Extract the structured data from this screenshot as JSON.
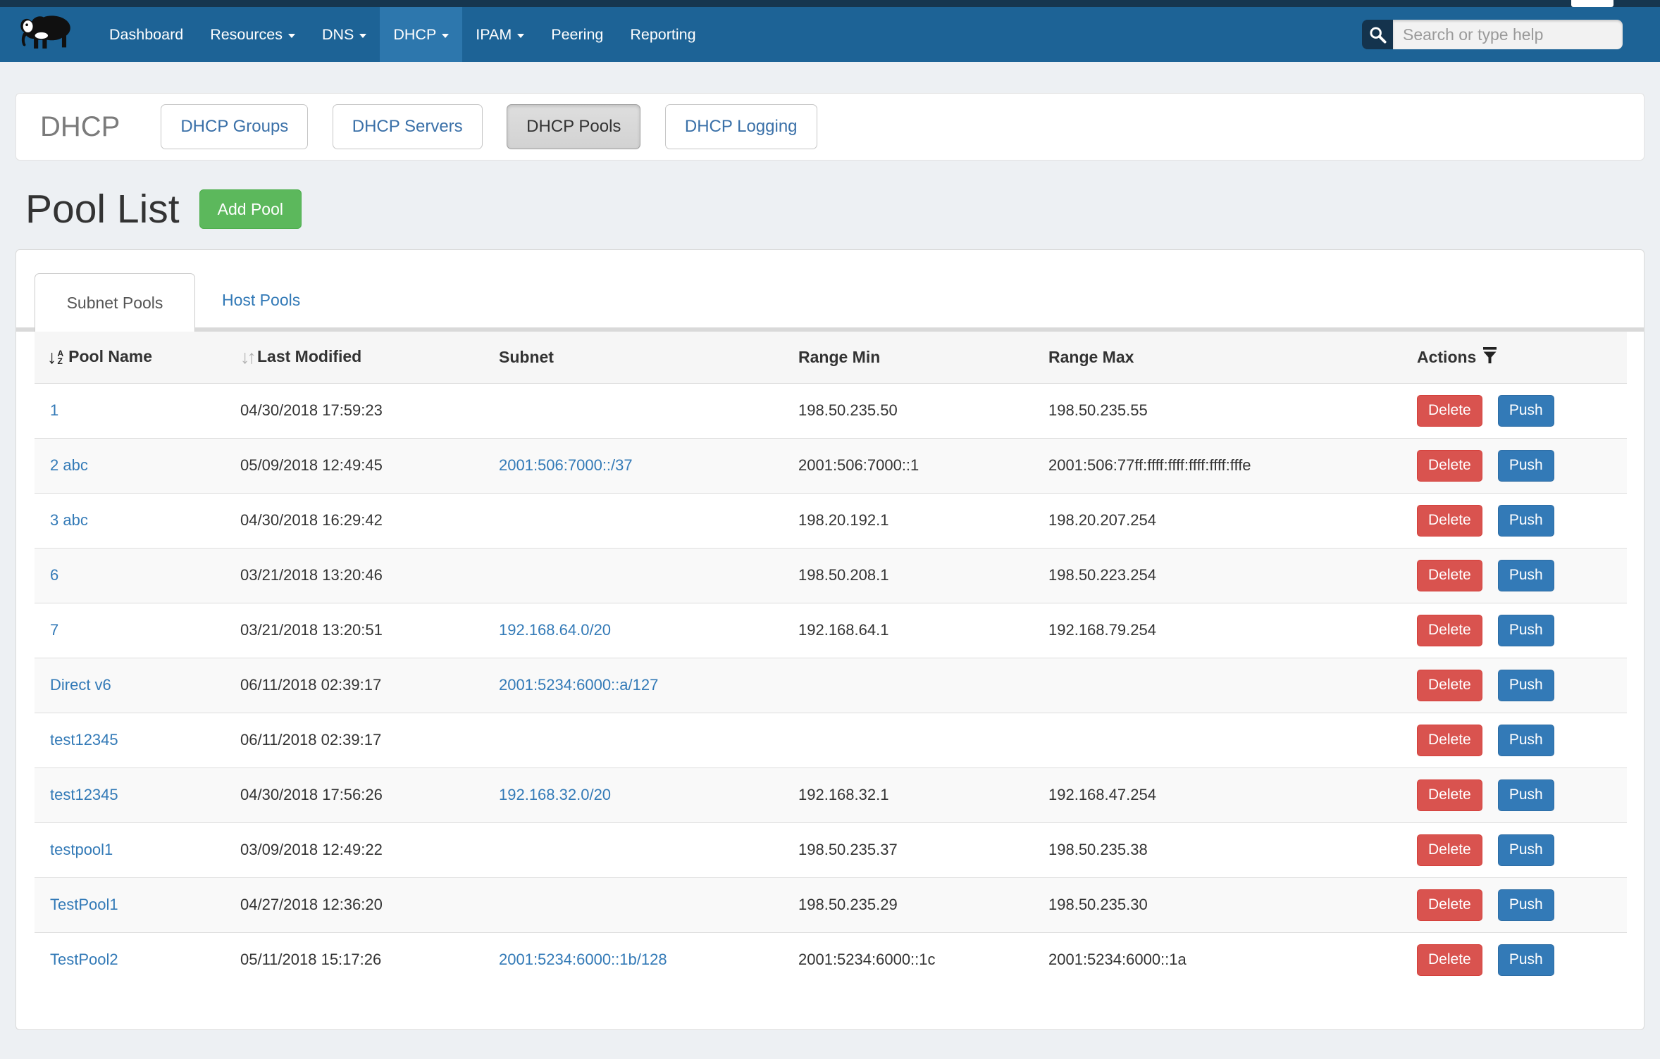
{
  "navbar": {
    "items": [
      {
        "label": "Dashboard",
        "caret": false,
        "active": false
      },
      {
        "label": "Resources",
        "caret": true,
        "active": false
      },
      {
        "label": "DNS",
        "caret": true,
        "active": false
      },
      {
        "label": "DHCP",
        "caret": true,
        "active": true
      },
      {
        "label": "IPAM",
        "caret": true,
        "active": false
      },
      {
        "label": "Peering",
        "caret": false,
        "active": false
      },
      {
        "label": "Reporting",
        "caret": false,
        "active": false
      }
    ],
    "search_placeholder": "Search or type help"
  },
  "subnav": {
    "title": "DHCP",
    "buttons": [
      {
        "label": "DHCP Groups",
        "active": false
      },
      {
        "label": "DHCP Servers",
        "active": false
      },
      {
        "label": "DHCP Pools",
        "active": true
      },
      {
        "label": "DHCP Logging",
        "active": false
      }
    ]
  },
  "page": {
    "title": "Pool List",
    "add_button": "Add Pool"
  },
  "tabs": [
    {
      "label": "Subnet Pools",
      "active": true
    },
    {
      "label": "Host Pools",
      "active": false
    }
  ],
  "table": {
    "columns": [
      {
        "label": "Pool Name",
        "sort": "az"
      },
      {
        "label": "Last Modified",
        "sort": "updown"
      },
      {
        "label": "Subnet",
        "sort": null
      },
      {
        "label": "Range Min",
        "sort": null
      },
      {
        "label": "Range Max",
        "sort": null
      },
      {
        "label": "Actions",
        "sort": null,
        "filter": true
      }
    ],
    "rows": [
      {
        "name": "1",
        "modified": "04/30/2018 17:59:23",
        "subnet": "",
        "range_min": "198.50.235.50",
        "range_max": "198.50.235.55"
      },
      {
        "name": "2 abc",
        "modified": "05/09/2018 12:49:45",
        "subnet": "2001:506:7000::/37",
        "range_min": "2001:506:7000::1",
        "range_max": "2001:506:77ff:ffff:ffff:ffff:ffff:fffe"
      },
      {
        "name": "3 abc",
        "modified": "04/30/2018 16:29:42",
        "subnet": "",
        "range_min": "198.20.192.1",
        "range_max": "198.20.207.254"
      },
      {
        "name": "6",
        "modified": "03/21/2018 13:20:46",
        "subnet": "",
        "range_min": "198.50.208.1",
        "range_max": "198.50.223.254"
      },
      {
        "name": "7",
        "modified": "03/21/2018 13:20:51",
        "subnet": "192.168.64.0/20",
        "range_min": "192.168.64.1",
        "range_max": "192.168.79.254"
      },
      {
        "name": "Direct v6",
        "modified": "06/11/2018 02:39:17",
        "subnet": "2001:5234:6000::a/127",
        "range_min": "",
        "range_max": ""
      },
      {
        "name": "test12345",
        "modified": "06/11/2018 02:39:17",
        "subnet": "",
        "range_min": "",
        "range_max": ""
      },
      {
        "name": "test12345",
        "modified": "04/30/2018 17:56:26",
        "subnet": "192.168.32.0/20",
        "range_min": "192.168.32.1",
        "range_max": "192.168.47.254"
      },
      {
        "name": "testpool1",
        "modified": "03/09/2018 12:49:22",
        "subnet": "",
        "range_min": "198.50.235.37",
        "range_max": "198.50.235.38"
      },
      {
        "name": "TestPool1",
        "modified": "04/27/2018 12:36:20",
        "subnet": "",
        "range_min": "198.50.235.29",
        "range_max": "198.50.235.30"
      },
      {
        "name": "TestPool2",
        "modified": "05/11/2018 15:17:26",
        "subnet": "2001:5234:6000::1b/128",
        "range_min": "2001:5234:6000::1c",
        "range_max": "2001:5234:6000::1a"
      }
    ],
    "row_actions": [
      {
        "label": "Delete",
        "style": "danger"
      },
      {
        "label": "Push",
        "style": "primary"
      }
    ]
  },
  "colors": {
    "navbar": "#1d6396",
    "navbar_active": "#2d77ad",
    "top_strip": "#16364f",
    "link": "#337ab7",
    "danger": "#d9534f",
    "primary": "#337ab7",
    "success": "#5cb85c",
    "page_background": "#edf0f3",
    "stripe": "#f9f9f9"
  }
}
